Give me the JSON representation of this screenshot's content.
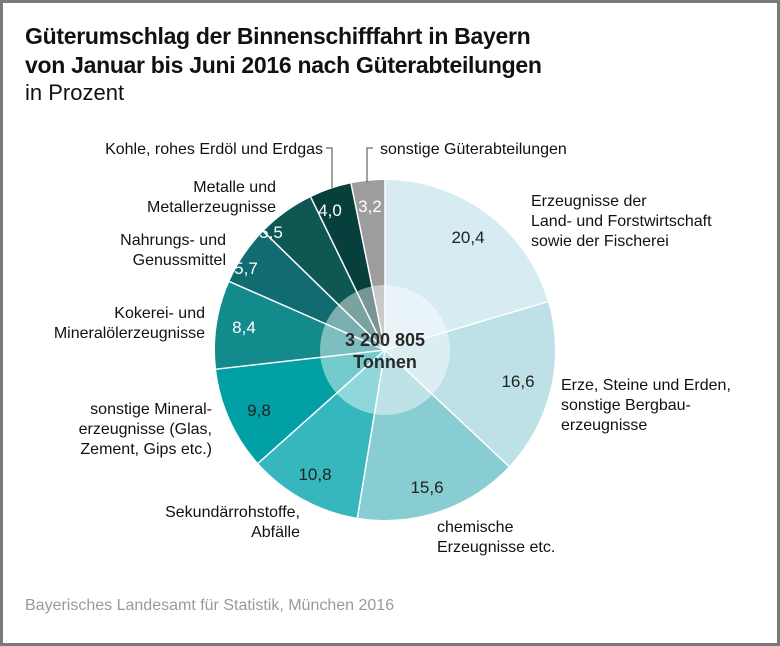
{
  "header": {
    "title_line1": "Güterumschlag der Binnenschifffahrt in Bayern",
    "title_line2": "von Januar bis Juni 2016 nach Güterabteilungen",
    "subtitle": "in Prozent"
  },
  "source": "Bayerisches Landesamt für Statistik, München 2016",
  "chart_data": {
    "type": "pie",
    "title": "Güterumschlag der Binnenschifffahrt in Bayern von Januar bis Juni 2016 nach Güterabteilungen",
    "subtitle": "in Prozent",
    "center_label": [
      "3 200 805",
      "Tonnen"
    ],
    "start": "top",
    "direction": "clockwise",
    "slices": [
      {
        "label": [
          "Erzeugnisse der",
          "Land- und Forstwirtschaft",
          "sowie der Fischerei"
        ],
        "value": 20.4,
        "display": "20,4",
        "color": "#d6ecf2",
        "text_color": "#222222"
      },
      {
        "label": [
          "Erze, Steine und Erden,",
          "sonstige Bergbau-",
          "erzeugnisse"
        ],
        "value": 16.6,
        "display": "16,6",
        "color": "#bde1e7",
        "text_color": "#222222"
      },
      {
        "label": [
          "chemische",
          "Erzeugnisse etc."
        ],
        "value": 15.6,
        "display": "15,6",
        "color": "#88cdd2",
        "text_color": "#222222"
      },
      {
        "label": [
          "Sekundärrohstoffe,",
          "Abfälle"
        ],
        "value": 10.8,
        "display": "10,8",
        "color": "#36b7bd",
        "text_color": "#222222"
      },
      {
        "label": [
          "sonstige Mineral-",
          "erzeugnisse (Glas,",
          "Zement, Gips etc.)"
        ],
        "value": 9.8,
        "display": "9,8",
        "color": "#00a0a4",
        "text_color": "#222222"
      },
      {
        "label": [
          "Kokerei- und",
          "Mineralölerzeugnisse"
        ],
        "value": 8.4,
        "display": "8,4",
        "color": "#138a8c",
        "text_color": "#ffffff"
      },
      {
        "label": [
          "Nahrungs- und",
          "Genussmittel"
        ],
        "value": 5.7,
        "display": "5,7",
        "color": "#106c70",
        "text_color": "#ffffff"
      },
      {
        "label": [
          "Metalle und",
          "Metallerzeugnisse"
        ],
        "value": 5.5,
        "display": "5,5",
        "color": "#0e5753",
        "text_color": "#ffffff"
      },
      {
        "label": [
          "Kohle, rohes Erdöl und Erdgas"
        ],
        "value": 4.0,
        "display": "4,0",
        "color": "#073f3c",
        "text_color": "#ffffff"
      },
      {
        "label": [
          "sonstige Güterabteilungen"
        ],
        "value": 3.2,
        "display": "3,2",
        "color": "#9d9d9d",
        "text_color": "#ffffff"
      }
    ]
  }
}
